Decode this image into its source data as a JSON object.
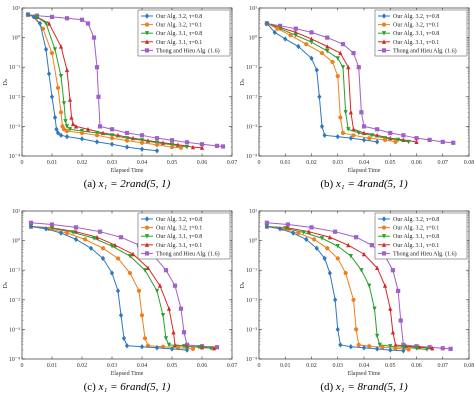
{
  "figure": {
    "series_styles": [
      {
        "color": "#2e78c2",
        "marker": "diamond"
      },
      {
        "color": "#f07f1d",
        "marker": "circle"
      },
      {
        "color": "#2aa02a",
        "marker": "triangle-down"
      },
      {
        "color": "#d62728",
        "marker": "triangle-up"
      },
      {
        "color": "#a05fc9",
        "marker": "square"
      }
    ]
  },
  "chart_data": [
    {
      "type": "line",
      "caption_prefix": "(a)",
      "caption_eq": "x₁ = 2rand(5, 1)",
      "xlabel": "Elapsed Time",
      "ylabel": "Dₙ",
      "xlim": [
        0,
        0.07
      ],
      "xticks": [
        0,
        0.01,
        0.02,
        0.03,
        0.04,
        0.05,
        0.06,
        0.07
      ],
      "xtick_labels": [
        "0",
        "0.01",
        "0.02",
        "0.03",
        "0.04",
        "0.05",
        "0.06",
        "0.07"
      ],
      "yscale": "log",
      "ylim": [
        0.0001,
        10
      ],
      "yticks": [
        0.0001,
        0.001,
        0.01,
        0.1,
        1,
        10
      ],
      "ytick_labels": [
        "10⁻⁴",
        "10⁻³",
        "10⁻²",
        "10⁻¹",
        "10⁰",
        "10¹"
      ],
      "grid": false,
      "legend": {
        "position": "top-right",
        "show": true
      },
      "series": [
        {
          "name": "Our Alg. 3.2, τ=0.8",
          "x": [
            0.002,
            0.004,
            0.006,
            0.008,
            0.009,
            0.01,
            0.011,
            0.0115,
            0.012,
            0.013,
            0.015,
            0.02,
            0.025,
            0.03,
            0.035,
            0.04,
            0.045
          ],
          "y": [
            6,
            5,
            3,
            0.4,
            0.06,
            0.01,
            0.002,
            0.0008,
            0.0006,
            0.0005,
            0.00045,
            0.00038,
            0.0003,
            0.00025,
            0.0002,
            0.00017,
            0.00015
          ]
        },
        {
          "name": "Our Alg. 3.2, τ=0.1",
          "x": [
            0.002,
            0.004,
            0.007,
            0.01,
            0.012,
            0.013,
            0.0135,
            0.014,
            0.015,
            0.02,
            0.025,
            0.03,
            0.035,
            0.04,
            0.045,
            0.05,
            0.053
          ],
          "y": [
            6,
            5,
            2,
            0.3,
            0.02,
            0.003,
            0.001,
            0.0008,
            0.0007,
            0.0006,
            0.0005,
            0.0004,
            0.00033,
            0.00028,
            0.00024,
            0.0002,
            0.00019
          ]
        },
        {
          "name": "Our Alg. 3.1, τ=0.8",
          "x": [
            0.002,
            0.005,
            0.008,
            0.011,
            0.013,
            0.014,
            0.0145,
            0.015,
            0.016,
            0.02,
            0.025,
            0.03,
            0.035,
            0.04,
            0.045,
            0.05,
            0.055
          ],
          "y": [
            6,
            5,
            3,
            0.4,
            0.05,
            0.006,
            0.0015,
            0.001,
            0.0008,
            0.0007,
            0.0006,
            0.0005,
            0.0004,
            0.00034,
            0.00028,
            0.00024,
            0.0002
          ]
        },
        {
          "name": "Our Alg. 3.1, τ=0.1",
          "x": [
            0.002,
            0.005,
            0.009,
            0.013,
            0.015,
            0.016,
            0.0165,
            0.017,
            0.018,
            0.022,
            0.027,
            0.032,
            0.037,
            0.042,
            0.047,
            0.052,
            0.057,
            0.06
          ],
          "y": [
            6,
            5,
            3,
            0.5,
            0.08,
            0.008,
            0.002,
            0.0012,
            0.001,
            0.0008,
            0.0006,
            0.0005,
            0.0004,
            0.00033,
            0.00028,
            0.00024,
            0.0002,
            0.00019
          ]
        },
        {
          "name": "Thong and Hieu Alg. (1.6)",
          "x": [
            0.002,
            0.005,
            0.01,
            0.015,
            0.02,
            0.022,
            0.024,
            0.025,
            0.0255,
            0.026,
            0.03,
            0.035,
            0.04,
            0.045,
            0.05,
            0.055,
            0.06,
            0.065,
            0.067
          ],
          "y": [
            6,
            5.5,
            5,
            4.5,
            4,
            3,
            1,
            0.1,
            0.01,
            0.001,
            0.0008,
            0.0006,
            0.0005,
            0.0004,
            0.00034,
            0.00029,
            0.00025,
            0.00022,
            0.00021
          ]
        }
      ]
    },
    {
      "type": "line",
      "caption_prefix": "(b)",
      "caption_eq": "x₁ = 4rand(5, 1)",
      "xlabel": "Elapsed Time",
      "ylabel": "Dₙ",
      "xlim": [
        0,
        0.08
      ],
      "xticks": [
        0,
        0.01,
        0.02,
        0.03,
        0.04,
        0.05,
        0.06,
        0.07,
        0.08
      ],
      "xtick_labels": [
        "0",
        "0.01",
        "0.02",
        "0.03",
        "0.04",
        "0.05",
        "0.06",
        "0.07",
        "0.08"
      ],
      "yscale": "log",
      "ylim": [
        0.0001,
        10
      ],
      "yticks": [
        0.0001,
        0.001,
        0.01,
        0.1,
        1,
        10
      ],
      "ytick_labels": [
        "10⁻⁴",
        "10⁻³",
        "10⁻²",
        "10⁻¹",
        "10⁰",
        "10¹"
      ],
      "grid": false,
      "legend": {
        "position": "top-right",
        "show": true
      },
      "series": [
        {
          "name": "Our Alg. 3.2, τ=0.8",
          "x": [
            0.003,
            0.006,
            0.01,
            0.015,
            0.02,
            0.022,
            0.023,
            0.024,
            0.025,
            0.03,
            0.035,
            0.04,
            0.045
          ],
          "y": [
            3,
            1.5,
            0.9,
            0.5,
            0.2,
            0.08,
            0.01,
            0.001,
            0.0005,
            0.00045,
            0.0004,
            0.00035,
            0.0003
          ]
        },
        {
          "name": "Our Alg. 3.2, τ=0.1",
          "x": [
            0.003,
            0.007,
            0.012,
            0.018,
            0.024,
            0.028,
            0.03,
            0.031,
            0.032,
            0.036,
            0.042,
            0.048,
            0.052
          ],
          "y": [
            3,
            2,
            1.2,
            0.6,
            0.3,
            0.15,
            0.05,
            0.002,
            0.0006,
            0.0005,
            0.0004,
            0.00035,
            0.0003
          ]
        },
        {
          "name": "Our Alg. 3.1, τ=0.8",
          "x": [
            0.003,
            0.008,
            0.014,
            0.02,
            0.026,
            0.03,
            0.032,
            0.033,
            0.034,
            0.038,
            0.043,
            0.048,
            0.053,
            0.057
          ],
          "y": [
            3,
            2,
            1.2,
            0.7,
            0.35,
            0.2,
            0.1,
            0.003,
            0.0008,
            0.0006,
            0.0005,
            0.0004,
            0.00035,
            0.0003
          ]
        },
        {
          "name": "Our Alg. 3.1, τ=0.1",
          "x": [
            0.003,
            0.008,
            0.014,
            0.02,
            0.026,
            0.031,
            0.034,
            0.035,
            0.036,
            0.04,
            0.045,
            0.05,
            0.055,
            0.06
          ],
          "y": [
            3,
            2.2,
            1.5,
            0.9,
            0.5,
            0.3,
            0.1,
            0.003,
            0.0008,
            0.0006,
            0.0005,
            0.0004,
            0.00035,
            0.0003
          ]
        },
        {
          "name": "Thong and Hieu Alg. (1.6)",
          "x": [
            0.003,
            0.008,
            0.014,
            0.02,
            0.026,
            0.032,
            0.036,
            0.038,
            0.039,
            0.04,
            0.045,
            0.05,
            0.055,
            0.06,
            0.065,
            0.07,
            0.074
          ],
          "y": [
            3,
            2.5,
            2,
            1.5,
            1,
            0.6,
            0.3,
            0.1,
            0.003,
            0.001,
            0.0008,
            0.0006,
            0.0005,
            0.0004,
            0.00035,
            0.0003,
            0.00028
          ]
        }
      ]
    },
    {
      "type": "line",
      "caption_prefix": "(c)",
      "caption_eq": "x₁ = 6rand(5, 1)",
      "xlabel": "Elapsed Time",
      "ylabel": "Dₙ",
      "xlim": [
        0,
        0.07
      ],
      "xticks": [
        0,
        0.01,
        0.02,
        0.03,
        0.04,
        0.05,
        0.06,
        0.07
      ],
      "xtick_labels": [
        "0",
        "0.01",
        "0.02",
        "0.03",
        "0.04",
        "0.05",
        "0.06",
        "0.07"
      ],
      "yscale": "log",
      "ylim": [
        0.0001,
        10
      ],
      "yticks": [
        0.0001,
        0.001,
        0.01,
        0.1,
        1,
        10
      ],
      "ytick_labels": [
        "10⁻⁴",
        "10⁻³",
        "10⁻²",
        "10⁻¹",
        "10⁰",
        "10¹"
      ],
      "grid": false,
      "legend": {
        "position": "top-right",
        "show": true
      },
      "series": [
        {
          "name": "Our Alg. 3.2, τ=0.8",
          "x": [
            0.003,
            0.008,
            0.013,
            0.018,
            0.023,
            0.027,
            0.03,
            0.032,
            0.033,
            0.034,
            0.035,
            0.04,
            0.045,
            0.05,
            0.055
          ],
          "y": [
            3,
            2.5,
            1.8,
            1.1,
            0.55,
            0.25,
            0.08,
            0.02,
            0.003,
            0.0005,
            0.00028,
            0.00026,
            0.00024,
            0.00022,
            0.0002
          ]
        },
        {
          "name": "Our Alg. 3.2, τ=0.1",
          "x": [
            0.003,
            0.009,
            0.015,
            0.021,
            0.027,
            0.032,
            0.036,
            0.039,
            0.04,
            0.041,
            0.042,
            0.047,
            0.052,
            0.057
          ],
          "y": [
            3,
            2.5,
            1.8,
            1.1,
            0.55,
            0.25,
            0.08,
            0.02,
            0.003,
            0.0005,
            0.00028,
            0.00026,
            0.00024,
            0.00022
          ]
        },
        {
          "name": "Our Alg. 3.1, τ=0.8",
          "x": [
            0.003,
            0.01,
            0.017,
            0.024,
            0.03,
            0.036,
            0.041,
            0.045,
            0.047,
            0.048,
            0.049,
            0.054,
            0.059,
            0.063
          ],
          "y": [
            3,
            2.6,
            1.9,
            1.2,
            0.65,
            0.3,
            0.1,
            0.02,
            0.003,
            0.0005,
            0.0003,
            0.00027,
            0.00025,
            0.00023
          ]
        },
        {
          "name": "Our Alg. 3.1, τ=0.1",
          "x": [
            0.003,
            0.01,
            0.018,
            0.025,
            0.031,
            0.037,
            0.042,
            0.046,
            0.049,
            0.0505,
            0.051,
            0.055,
            0.06,
            0.064
          ],
          "y": [
            3,
            2.7,
            2,
            1.3,
            0.7,
            0.35,
            0.12,
            0.03,
            0.005,
            0.0008,
            0.0003,
            0.00027,
            0.00025,
            0.00023
          ]
        },
        {
          "name": "Thong and Hieu Alg. (1.6)",
          "x": [
            0.003,
            0.01,
            0.018,
            0.026,
            0.033,
            0.039,
            0.044,
            0.048,
            0.051,
            0.053,
            0.054,
            0.055,
            0.06,
            0.065
          ],
          "y": [
            4,
            3.5,
            2.8,
            2,
            1.3,
            0.7,
            0.3,
            0.1,
            0.03,
            0.005,
            0.0008,
            0.0003,
            0.00027,
            0.00025
          ]
        }
      ]
    },
    {
      "type": "line",
      "caption_prefix": "(d)",
      "caption_eq": "x₁ = 8rand(5, 1)",
      "xlabel": "Elapsed Time",
      "ylabel": "Dₙ",
      "xlim": [
        0,
        0.08
      ],
      "xticks": [
        0,
        0.01,
        0.02,
        0.03,
        0.04,
        0.05,
        0.06,
        0.07,
        0.08
      ],
      "xtick_labels": [
        "0",
        "0.01",
        "0.02",
        "0.03",
        "0.04",
        "0.05",
        "0.06",
        "0.07",
        "0.08"
      ],
      "yscale": "log",
      "ylim": [
        0.0001,
        10
      ],
      "yticks": [
        0.0001,
        0.001,
        0.01,
        0.1,
        1,
        10
      ],
      "ytick_labels": [
        "10⁻⁴",
        "10⁻³",
        "10⁻²",
        "10⁻¹",
        "10⁰",
        "10¹"
      ],
      "grid": false,
      "legend": {
        "position": "top-right",
        "show": true
      },
      "series": [
        {
          "name": "Our Alg. 3.2, τ=0.8",
          "x": [
            0.003,
            0.008,
            0.013,
            0.018,
            0.022,
            0.025,
            0.027,
            0.029,
            0.03,
            0.031,
            0.035,
            0.04,
            0.045,
            0.05,
            0.055
          ],
          "y": [
            3,
            2.5,
            1.8,
            1.1,
            0.55,
            0.25,
            0.08,
            0.01,
            0.001,
            0.0003,
            0.00026,
            0.00024,
            0.00022,
            0.0002,
            0.00019
          ]
        },
        {
          "name": "Our Alg. 3.2, τ=0.1",
          "x": [
            0.003,
            0.009,
            0.015,
            0.021,
            0.026,
            0.03,
            0.033,
            0.036,
            0.037,
            0.038,
            0.042,
            0.047,
            0.052,
            0.057
          ],
          "y": [
            3,
            2.5,
            1.8,
            1.1,
            0.55,
            0.25,
            0.08,
            0.01,
            0.001,
            0.0003,
            0.00027,
            0.00025,
            0.00023,
            0.00021
          ]
        },
        {
          "name": "Our Alg. 3.1, τ=0.8",
          "x": [
            0.003,
            0.01,
            0.017,
            0.024,
            0.03,
            0.035,
            0.039,
            0.042,
            0.044,
            0.045,
            0.046,
            0.05,
            0.055,
            0.06,
            0.064
          ],
          "y": [
            3,
            2.6,
            1.9,
            1.2,
            0.65,
            0.3,
            0.1,
            0.03,
            0.005,
            0.0006,
            0.0003,
            0.00027,
            0.00025,
            0.00023,
            0.00021
          ]
        },
        {
          "name": "Our Alg. 3.1, τ=0.1",
          "x": [
            0.003,
            0.011,
            0.019,
            0.027,
            0.034,
            0.04,
            0.045,
            0.048,
            0.05,
            0.051,
            0.052,
            0.056,
            0.061,
            0.066
          ],
          "y": [
            3,
            2.7,
            2,
            1.3,
            0.7,
            0.35,
            0.12,
            0.03,
            0.005,
            0.0008,
            0.0003,
            0.00027,
            0.00025,
            0.00023
          ]
        },
        {
          "name": "Thong and Hieu Alg. (1.6)",
          "x": [
            0.003,
            0.011,
            0.02,
            0.029,
            0.037,
            0.043,
            0.048,
            0.051,
            0.053,
            0.054,
            0.055,
            0.06,
            0.065,
            0.07,
            0.073
          ],
          "y": [
            4,
            3.5,
            2.8,
            2,
            1.3,
            0.7,
            0.3,
            0.1,
            0.02,
            0.002,
            0.0003,
            0.00027,
            0.00025,
            0.00023,
            0.00022
          ]
        }
      ]
    }
  ]
}
